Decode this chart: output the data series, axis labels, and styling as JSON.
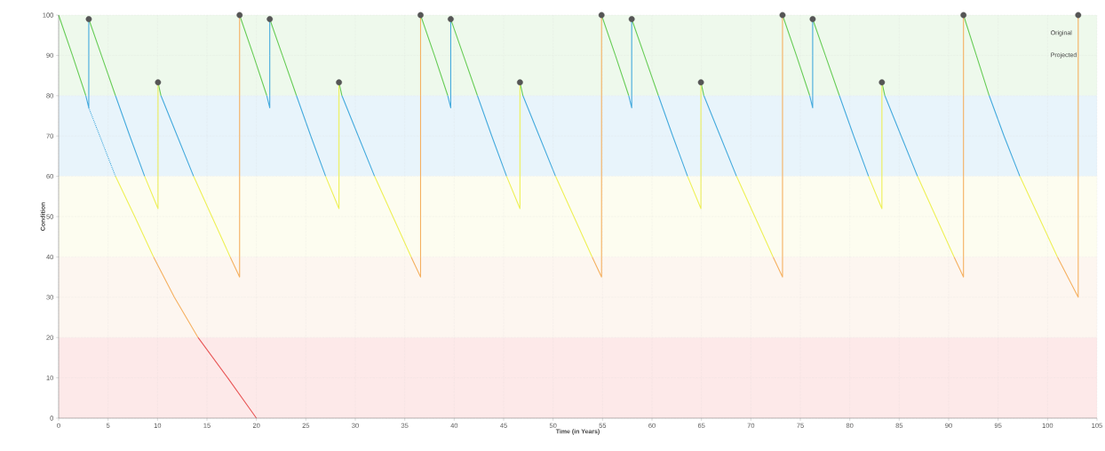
{
  "chart_data": {
    "type": "line",
    "xlabel": "Time (in Years)",
    "ylabel": "Condition",
    "xlim": [
      0,
      105
    ],
    "xticks": [
      0,
      5,
      10,
      15,
      20,
      25,
      30,
      35,
      40,
      45,
      50,
      55,
      60,
      65,
      70,
      75,
      80,
      85,
      90,
      95,
      100,
      105
    ],
    "ylim": [
      0,
      100
    ],
    "yticks": [
      0,
      10,
      20,
      30,
      40,
      50,
      60,
      70,
      80,
      90,
      100
    ],
    "grid": true,
    "line_style": "solid",
    "marker": "none",
    "bands": [
      {
        "axis": "y",
        "from": 80,
        "to": 100,
        "color": "#eef9ec"
      },
      {
        "axis": "y",
        "from": 60,
        "to": 80,
        "color": "#e8f4fb"
      },
      {
        "axis": "y",
        "from": 40,
        "to": 60,
        "color": "#fdfdf0"
      },
      {
        "axis": "y",
        "from": 20,
        "to": 40,
        "color": "#fdf6f0"
      },
      {
        "axis": "y",
        "from": 0,
        "to": 20,
        "color": "#fde9e9"
      }
    ],
    "annotations": [
      "Original",
      "Projected"
    ],
    "series": [
      {
        "color": "#66cc55",
        "x": [
          0,
          1.4,
          2.75,
          null,
          3.05,
          4.4,
          5.75,
          null,
          10.05,
          10.35,
          null,
          18.3,
          19.7,
          21.05,
          null,
          21.35,
          22.7,
          24.05,
          null,
          28.35,
          28.65,
          null,
          36.6,
          38,
          39.35,
          null,
          39.65,
          41,
          42.35,
          null,
          46.65,
          46.95,
          null,
          54.9,
          56.3,
          57.65,
          null,
          57.95,
          59.3,
          60.65,
          null,
          64.95,
          65.25,
          null,
          73.2,
          74.6,
          75.95,
          null,
          76.25,
          77.6,
          78.95,
          null,
          83.25,
          83.55,
          null,
          91.5,
          92.8,
          94.1
        ],
        "values": [
          100,
          90,
          80,
          null,
          99,
          89.5,
          80,
          null,
          83.3,
          80,
          null,
          100,
          90,
          80,
          null,
          99,
          89.5,
          80,
          null,
          83.3,
          80,
          null,
          100,
          90,
          80,
          null,
          99,
          89.5,
          80,
          null,
          83.3,
          80,
          null,
          100,
          90,
          80,
          null,
          99,
          89.5,
          80,
          null,
          83.3,
          80,
          null,
          100,
          90,
          80,
          null,
          99,
          89.5,
          80,
          null,
          83.3,
          80,
          null,
          100,
          90,
          80
        ]
      },
      {
        "color": "#44aadd",
        "x": [
          2.75,
          3.05,
          3.05,
          null,
          5.75,
          7.2,
          8.7,
          null,
          10.35,
          12,
          13.65,
          null,
          21.05,
          21.35,
          21.35,
          null,
          24.05,
          25.5,
          27,
          null,
          28.65,
          30.3,
          31.95,
          null,
          39.35,
          39.65,
          39.65,
          null,
          42.35,
          43.8,
          45.3,
          null,
          46.95,
          48.6,
          50.25,
          null,
          57.65,
          57.95,
          57.95,
          null,
          60.65,
          62.1,
          63.6,
          null,
          65.25,
          66.9,
          68.55,
          null,
          75.95,
          76.25,
          76.25,
          null,
          78.95,
          80.4,
          81.9,
          null,
          83.55,
          85.2,
          86.85,
          null,
          94.1,
          95.6,
          97.2
        ],
        "values": [
          80,
          77,
          99,
          null,
          80,
          70,
          60,
          null,
          80,
          70,
          60,
          null,
          80,
          77,
          99,
          null,
          80,
          70,
          60,
          null,
          80,
          70,
          60,
          null,
          80,
          77,
          99,
          null,
          80,
          70,
          60,
          null,
          80,
          70,
          60,
          null,
          80,
          77,
          99,
          null,
          80,
          70,
          60,
          null,
          80,
          70,
          60,
          null,
          80,
          77,
          99,
          null,
          80,
          70,
          60,
          null,
          80,
          70,
          60,
          null,
          80,
          70,
          60
        ]
      },
      {
        "color": "#44aadd",
        "line_style": "dotted",
        "x": [
          3.05,
          4.4,
          5.75
        ],
        "values": [
          77,
          68.5,
          60
        ]
      },
      {
        "color": "#eef055",
        "x": [
          5.75,
          7.7,
          9.6,
          null,
          8.7,
          10.05,
          10.05,
          null,
          13.65,
          15.5,
          17.35,
          null,
          27,
          28.35,
          28.35,
          null,
          31.95,
          33.8,
          35.65,
          null,
          45.3,
          46.65,
          46.65,
          null,
          50.25,
          52.1,
          53.95,
          null,
          63.6,
          64.95,
          64.95,
          null,
          68.55,
          70.4,
          72.25,
          null,
          81.9,
          83.25,
          83.25,
          null,
          86.85,
          88.7,
          90.55,
          null,
          97.2,
          99.1,
          101
        ],
        "values": [
          60,
          50,
          40,
          null,
          60,
          52,
          83.3,
          null,
          60,
          50,
          40,
          null,
          60,
          52,
          83.3,
          null,
          60,
          50,
          40,
          null,
          60,
          52,
          83.3,
          null,
          60,
          50,
          40,
          null,
          60,
          52,
          83.3,
          null,
          60,
          50,
          40,
          null,
          60,
          52,
          83.3,
          null,
          60,
          50,
          40,
          null,
          60,
          50,
          40
        ]
      },
      {
        "color": "#f5b060",
        "x": [
          9.6,
          11.7,
          14.1,
          null,
          17.35,
          18.3,
          18.3,
          null,
          35.65,
          36.6,
          36.6,
          null,
          53.95,
          54.9,
          54.9,
          null,
          72.25,
          73.2,
          73.2,
          null,
          90.55,
          91.5,
          91.5,
          null,
          101,
          103.1,
          103.1
        ],
        "values": [
          40,
          30,
          20,
          null,
          40,
          35,
          100,
          null,
          40,
          35,
          100,
          null,
          40,
          35,
          100,
          null,
          40,
          35,
          100,
          null,
          40,
          35,
          100,
          null,
          40,
          30,
          100
        ]
      },
      {
        "color": "#e85555",
        "x": [
          14.1,
          17.1,
          20
        ],
        "values": [
          20,
          10,
          0
        ]
      },
      {
        "type": "scatter",
        "marker": "circle",
        "color": "#555555",
        "x": [
          3.05,
          10.05,
          18.3,
          21.35,
          28.35,
          36.6,
          39.65,
          46.65,
          54.9,
          57.95,
          64.95,
          73.2,
          76.25,
          83.25,
          91.5,
          103.1
        ],
        "values": [
          99,
          83.3,
          100,
          99,
          83.3,
          100,
          99,
          83.3,
          100,
          99,
          83.3,
          100,
          99,
          83.3,
          100,
          100
        ]
      }
    ]
  }
}
